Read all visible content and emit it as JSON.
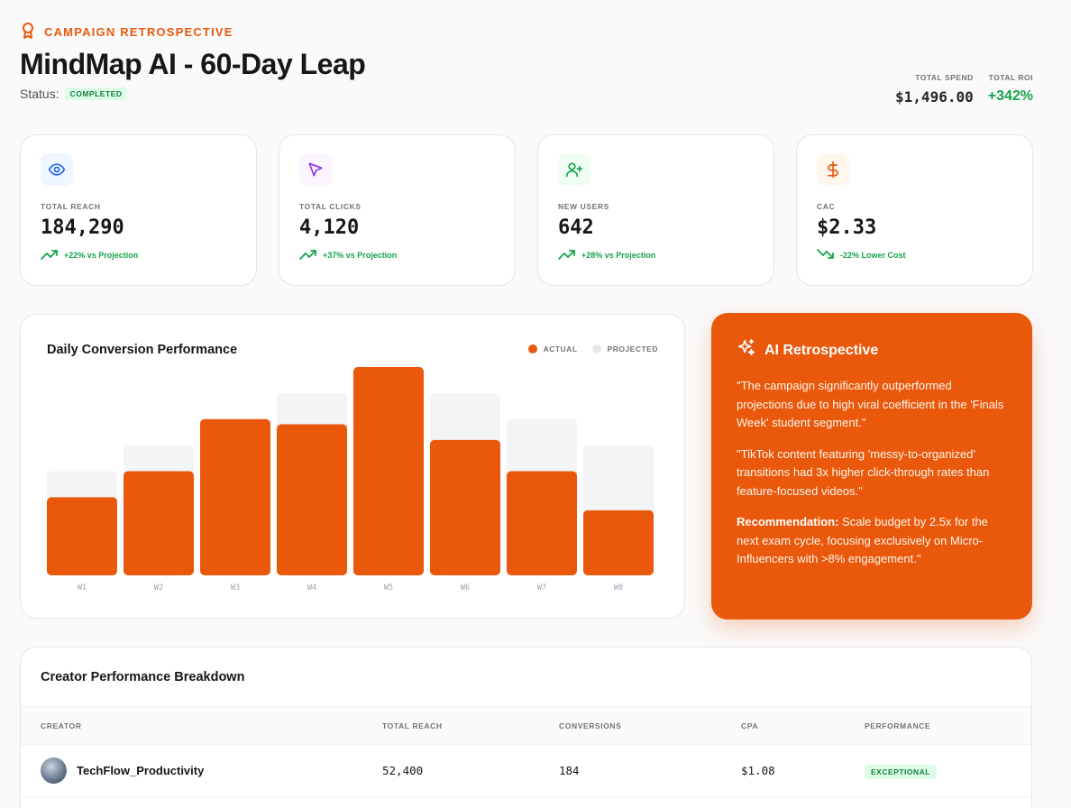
{
  "header": {
    "eyebrow": "CAMPAIGN RETROSPECTIVE",
    "eyebrow_icon": "award-icon",
    "title": "MindMap AI - 60-Day Leap",
    "status_label": "Status:",
    "status_badge": "COMPLETED",
    "total_spend_label": "TOTAL SPEND",
    "total_spend_value": "$1,496.00",
    "total_roi_label": "TOTAL ROI",
    "total_roi_value": "+342%"
  },
  "kpis": [
    {
      "icon": "eye-icon",
      "label": "TOTAL REACH",
      "value": "184,290",
      "trend": "+22% vs Projection",
      "trend_dir": "up"
    },
    {
      "icon": "cursor-icon",
      "label": "TOTAL CLICKS",
      "value": "4,120",
      "trend": "+37% vs Projection",
      "trend_dir": "up"
    },
    {
      "icon": "user-plus-icon",
      "label": "NEW USERS",
      "value": "642",
      "trend": "+28% vs Projection",
      "trend_dir": "up"
    },
    {
      "icon": "dollar-icon",
      "label": "CAC",
      "value": "$2.33",
      "trend": "-22% Lower Cost",
      "trend_dir": "down"
    }
  ],
  "chart": {
    "title": "Daily Conversion Performance",
    "legend_actual": "ACTUAL",
    "legend_projected": "PROJECTED"
  },
  "chart_data": {
    "type": "bar",
    "title": "Daily Conversion Performance",
    "categories": [
      "W1",
      "W2",
      "W3",
      "W4",
      "W5",
      "W6",
      "W7",
      "W8"
    ],
    "series": [
      {
        "name": "ACTUAL",
        "values": [
          30,
          40,
          60,
          58,
          80,
          52,
          40,
          25
        ]
      },
      {
        "name": "PROJECTED",
        "values": [
          40,
          50,
          60,
          70,
          80,
          70,
          60,
          50
        ]
      }
    ],
    "ylim": [
      0,
      80
    ],
    "colors": {
      "actual": "#ea580c",
      "projected": "#f3f4f6"
    }
  },
  "ai": {
    "title": "AI Retrospective",
    "p1": "\"The campaign significantly outperformed projections due to high viral coefficient in the 'Finals Week' student segment.\"",
    "p2": "\"TikTok content featuring 'messy-to-organized' transitions had 3x higher click-through rates than feature-focused videos.\"",
    "p3_bold": "Recommendation:",
    "p3_text": " Scale budget by 2.5x for the next exam cycle, focusing exclusively on Micro-Influencers with >8% engagement.\""
  },
  "table": {
    "title": "Creator Performance Breakdown",
    "columns": [
      "CREATOR",
      "TOTAL REACH",
      "CONVERSIONS",
      "CPA",
      "PERFORMANCE"
    ],
    "rows": [
      {
        "creator": "TechFlow_Productivity",
        "reach": "52,400",
        "conversions": "184",
        "cpa": "$1.08",
        "performance": "EXCEPTIONAL"
      }
    ]
  },
  "colors": {
    "accent": "#ea580c",
    "positive": "#16a34a"
  }
}
